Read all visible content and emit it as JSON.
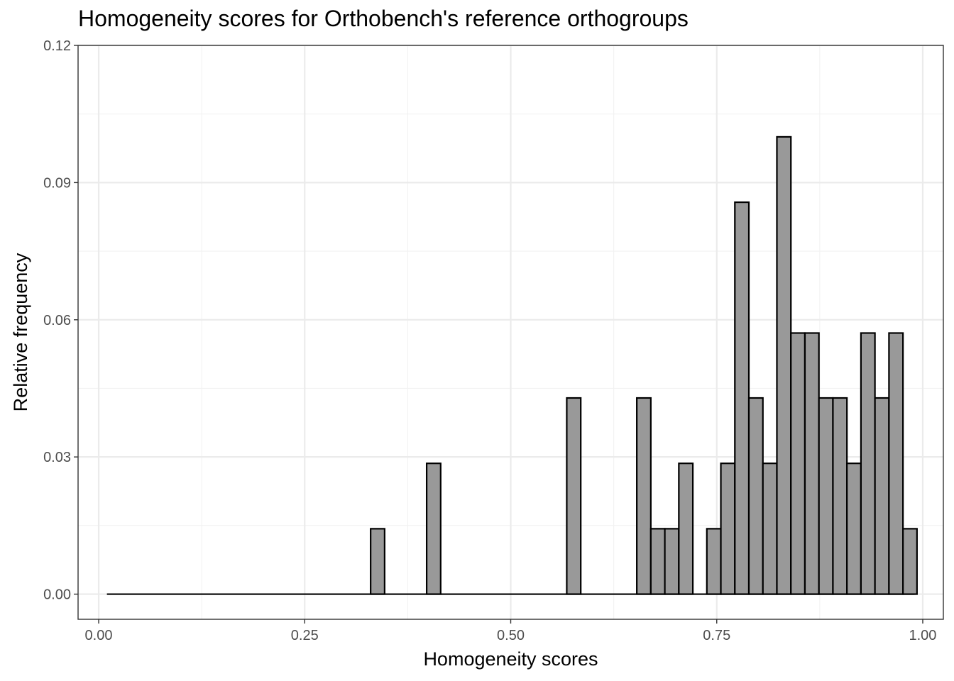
{
  "chart_data": {
    "type": "bar",
    "title": "Homogeneity scores for Orthobench's reference orthogroups",
    "xlabel": "Homogeneity scores",
    "ylabel": "Relative frequency",
    "xlim": [
      -0.025,
      1.025
    ],
    "ylim": [
      -0.0055,
      0.12
    ],
    "x_ticks": [
      0.0,
      0.25,
      0.5,
      0.75,
      1.0
    ],
    "x_tick_labels": [
      "0.00",
      "0.25",
      "0.50",
      "0.75",
      "1.00"
    ],
    "y_ticks": [
      0.0,
      0.03,
      0.06,
      0.09,
      0.12
    ],
    "y_tick_labels": [
      "0.00",
      "0.03",
      "0.06",
      "0.09",
      "0.12"
    ],
    "grid": true,
    "bin_width": 0.017,
    "x_range": [
      0.01,
      0.99
    ],
    "bins": [
      {
        "x_start": 0.33,
        "value": 0.0143
      },
      {
        "x_start": 0.398,
        "value": 0.0286
      },
      {
        "x_start": 0.568,
        "value": 0.0429
      },
      {
        "x_start": 0.653,
        "value": 0.0429
      },
      {
        "x_start": 0.67,
        "value": 0.0143
      },
      {
        "x_start": 0.687,
        "value": 0.0143
      },
      {
        "x_start": 0.704,
        "value": 0.0286
      },
      {
        "x_start": 0.738,
        "value": 0.0143
      },
      {
        "x_start": 0.755,
        "value": 0.0286
      },
      {
        "x_start": 0.772,
        "value": 0.0857
      },
      {
        "x_start": 0.789,
        "value": 0.0429
      },
      {
        "x_start": 0.806,
        "value": 0.0286
      },
      {
        "x_start": 0.823,
        "value": 0.1
      },
      {
        "x_start": 0.84,
        "value": 0.0571
      },
      {
        "x_start": 0.857,
        "value": 0.0571
      },
      {
        "x_start": 0.874,
        "value": 0.0429
      },
      {
        "x_start": 0.891,
        "value": 0.0429
      },
      {
        "x_start": 0.908,
        "value": 0.0286
      },
      {
        "x_start": 0.925,
        "value": 0.0571
      },
      {
        "x_start": 0.942,
        "value": 0.0429
      },
      {
        "x_start": 0.959,
        "value": 0.0571
      },
      {
        "x_start": 0.976,
        "value": 0.0143
      }
    ],
    "colors": {
      "bar_fill": "#999999",
      "bar_outline": "#000000",
      "grid_major": "#ebebeb",
      "grid_minor": "#f2f2f2",
      "panel_border": "#333333"
    }
  }
}
